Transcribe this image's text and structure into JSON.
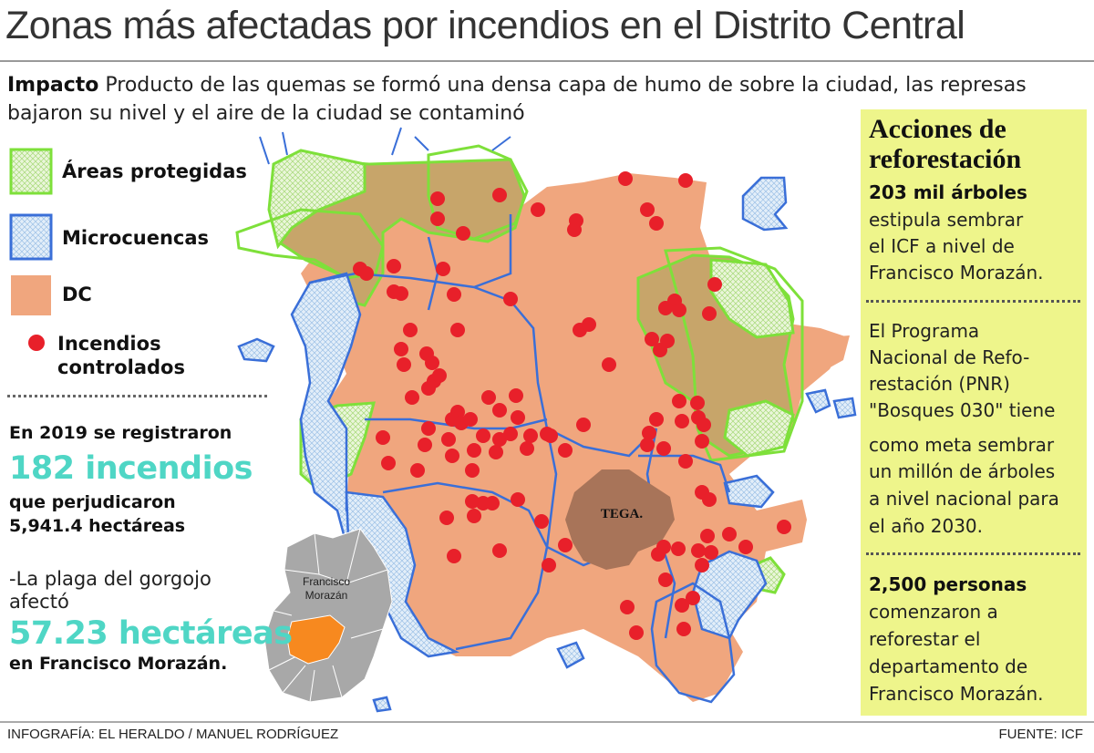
{
  "title": "Zonas más afectadas por incendios en el Distrito Central",
  "intro": {
    "label": "Impacto",
    "text": "Producto de las quemas se formó una densa capa de humo de sobre la ciudad, las represas bajaron su nivel y el aire de la ciudad se contaminó"
  },
  "legend": {
    "protected_areas": "Áreas protegidas",
    "microbasins": "Microcuencas",
    "dc": "DC",
    "fires_line1": "Incendios",
    "fires_line2": "controlados"
  },
  "colors": {
    "dc_fill": "#f0a67e",
    "protected_outline": "#7ee03a",
    "protected_fill": "#c7a56a",
    "microbasin_outline": "#3a6fd8",
    "microbasin_fill": "#e3eef9",
    "fire_dot": "#e8202a",
    "city_fill": "#a87459",
    "sidebar_bg": "#eef58b",
    "stat_accent": "#4fd6c5",
    "inset_gray": "#a8a8a8",
    "inset_orange": "#f7891f"
  },
  "map": {
    "city_label": "TEGA.",
    "inset_label_line1": "Francisco",
    "inset_label_line2": "Morazán"
  },
  "stats": {
    "line1": "En 2019 se registraron",
    "fires_big": "182 incendios",
    "line2": "que perjudicaron",
    "line3": "5,941.4 hectáreas",
    "weevil_line1": "-La plaga del gorgojo",
    "weevil_line2": "afectó",
    "hectares_big": "57.23 hectáreas",
    "line4": "en Francisco Morazán."
  },
  "sidebar": {
    "heading_line1": "Acciones de",
    "heading_line2": "reforestación",
    "trees_bold": "203 mil árboles",
    "trees_l1": "estipula sembrar",
    "trees_l2": "el ICF a nivel de",
    "trees_l3": "Francisco Morazán.",
    "pnr_l1": "El Programa",
    "pnr_l2": "Nacional de Refo-",
    "pnr_l3": "restación (PNR)",
    "pnr_l4": "\"Bosques 030\" tiene",
    "pnr_l5": "como meta sembrar",
    "pnr_l6": "un millón de árboles",
    "pnr_l7": "a nivel nacional para",
    "pnr_l8": "el año 2030.",
    "people_bold": "2,500 personas",
    "people_l1": "comenzaron a",
    "people_l2": "reforestar el",
    "people_l3": "departamento de",
    "people_l4": "Francisco Morazán."
  },
  "credits": {
    "left": "INFOGRAFÍA: EL HERALDO / MANUEL RODRÍGUEZ",
    "right": "FUENTE: ICF"
  }
}
